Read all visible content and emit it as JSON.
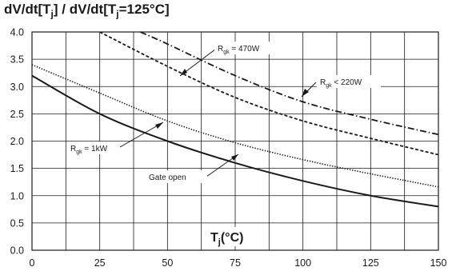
{
  "chart_data": {
    "type": "line",
    "title": "dV/dt[Tj] / dV/dt[Tj=125°C]",
    "title_parts": {
      "a": "dV/dt[T",
      "sub1": "j",
      "b": "] / dV/dt[T",
      "sub2": "j",
      "c": "=125°C]"
    },
    "xlabel": "Tj(°C)",
    "xlabel_parts": {
      "a": "T",
      "sub": "j",
      "b": "(°C)"
    },
    "ylabel": "",
    "xlim": [
      0,
      150
    ],
    "ylim": [
      0,
      4.0
    ],
    "grid": true,
    "x_ticks": [
      0,
      25,
      50,
      75,
      100,
      125,
      150
    ],
    "y_ticks": [
      "0.0",
      "0.5",
      "1.0",
      "1.5",
      "2.0",
      "2.5",
      "3.0",
      "3.5",
      "4.0"
    ],
    "x_grid_step": 12.5,
    "series": [
      {
        "label": "Rgk = 470W",
        "label_parts": {
          "a": "R",
          "sub": "gk",
          "b": " = 470W"
        },
        "style": "dash-dot",
        "color": "#1a1a1a",
        "points": [
          [
            40,
            4.0
          ],
          [
            50,
            3.78
          ],
          [
            75,
            3.2
          ],
          [
            100,
            2.72
          ],
          [
            125,
            2.4
          ],
          [
            150,
            2.12
          ]
        ]
      },
      {
        "label": "Rgk < 220W",
        "label_parts": {
          "a": "R",
          "sub": "gk",
          "b": " < 220W"
        },
        "style": "dashed",
        "color": "#1a1a1a",
        "points": [
          [
            25,
            4.0
          ],
          [
            50,
            3.37
          ],
          [
            75,
            2.8
          ],
          [
            100,
            2.37
          ],
          [
            125,
            2.05
          ],
          [
            150,
            1.75
          ]
        ]
      },
      {
        "label": "Rgk = 1kW",
        "label_parts": {
          "a": "R",
          "sub": "gk",
          "b": " = 1kW"
        },
        "style": "dotted",
        "color": "#1a1a1a",
        "points": [
          [
            0,
            3.4
          ],
          [
            25,
            2.88
          ],
          [
            50,
            2.37
          ],
          [
            75,
            1.97
          ],
          [
            100,
            1.66
          ],
          [
            125,
            1.4
          ],
          [
            150,
            1.16
          ]
        ]
      },
      {
        "label": "Gate open",
        "style": "solid",
        "color": "#1a1a1a",
        "points": [
          [
            0,
            3.2
          ],
          [
            25,
            2.5
          ],
          [
            50,
            2.0
          ],
          [
            75,
            1.6
          ],
          [
            100,
            1.27
          ],
          [
            125,
            1.0
          ],
          [
            150,
            0.8
          ]
        ]
      }
    ]
  }
}
